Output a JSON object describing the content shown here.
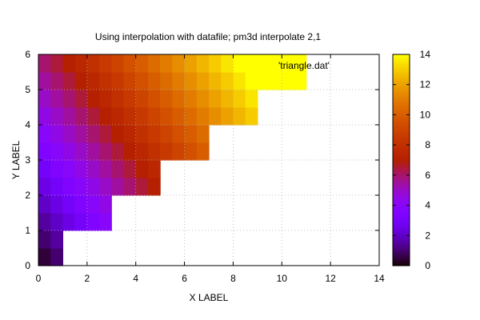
{
  "chart_data": {
    "type": "heatmap",
    "title": "Using interpolation with datafile; pm3d interpolate 2,1",
    "xlabel": "X LABEL",
    "ylabel": "Y LABEL",
    "xlim": [
      0,
      14
    ],
    "ylim": [
      0,
      6
    ],
    "xticks": [
      0,
      2,
      4,
      6,
      8,
      10,
      12,
      14
    ],
    "yticks": [
      0,
      1,
      2,
      3,
      4,
      5,
      6
    ],
    "grid": true,
    "legend": {
      "label": "'triangle.dat'",
      "placement": "top-right"
    },
    "colorbar": {
      "range": [
        0,
        14
      ],
      "ticks": [
        0,
        2,
        4,
        6,
        8,
        10,
        12,
        14
      ],
      "palette": "gnuplot"
    },
    "series": [
      {
        "ymin": 0,
        "ymax": 1,
        "xmin": 0,
        "xmax": 1
      },
      {
        "ymin": 1,
        "ymax": 2,
        "xmin": 0,
        "xmax": 3
      },
      {
        "ymin": 2,
        "ymax": 3,
        "xmin": 0,
        "xmax": 5
      },
      {
        "ymin": 3,
        "ymax": 4,
        "xmin": 0,
        "xmax": 7
      },
      {
        "ymin": 4,
        "ymax": 5,
        "xmin": 0,
        "xmax": 9
      },
      {
        "ymin": 5,
        "ymax": 6,
        "xmin": 0,
        "xmax": 11
      }
    ]
  }
}
